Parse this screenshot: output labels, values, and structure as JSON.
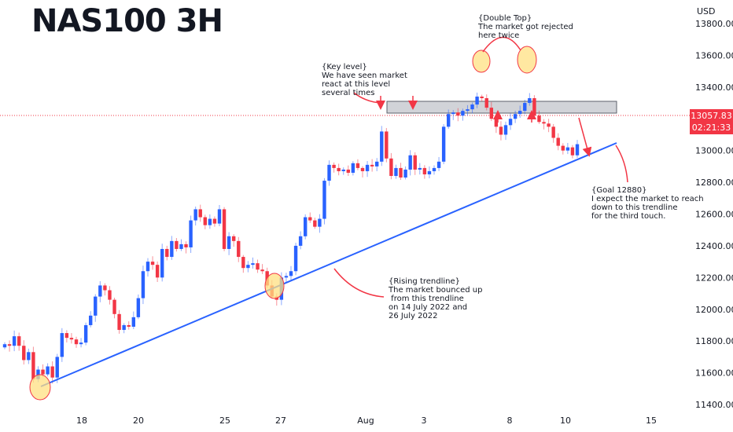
{
  "header": {
    "title": "NAS100 3H",
    "currency": "USD"
  },
  "price_tag": {
    "price": "13057.83",
    "countdown": "02:21:33"
  },
  "notes": {
    "double_top": "{Double Top}\nThe market got rejected\nhere twice",
    "key_level": "{Key level}\nWe have seen market\nreact at this level\nseveral times",
    "goal": "{Goal 12880}\nI expect the market to reach\ndown to this trendline\nfor the third touch.",
    "rising_trendline": "{Rising trendline}\nThe market bounced up\n from this trendline\non 14 July 2022 and\n26 July 2022"
  },
  "colors": {
    "up": "#2962ff",
    "down": "#f23645",
    "trendline": "#2962ff",
    "zone": "#b2b5be",
    "circle": "#ffe082"
  },
  "chart_data": {
    "type": "candlestick",
    "title": "NAS100 3H",
    "ylabel": "USD",
    "ylim": [
      11400,
      13800
    ],
    "y_ticks": [
      11400,
      11600,
      11800,
      12000,
      12200,
      12400,
      12600,
      12800,
      13000,
      13200,
      13400,
      13600,
      13800
    ],
    "x_ticks": [
      "18",
      "20",
      "25",
      "27",
      "Aug",
      "3",
      "8",
      "10",
      "15"
    ],
    "last_price": 13057.83,
    "key_level": [
      13080,
      13150
    ],
    "trendline": {
      "from": [
        "14 July 2022",
        11530
      ],
      "to": [
        "10 Aug 2022",
        12900
      ]
    },
    "series": [
      {
        "name": "",
        "close": [
          11780,
          11770,
          11830,
          11770,
          11680,
          11730,
          11560,
          11620,
          11590,
          11640,
          11570,
          11700,
          11850,
          11820,
          11810,
          11780,
          11790,
          11900,
          11960,
          12080,
          12150,
          12120,
          12060,
          11970,
          11870,
          11900,
          11890,
          11950,
          12070,
          12240,
          12300,
          12280,
          12200,
          12380,
          12330,
          12430,
          12380,
          12410,
          12390,
          12560,
          12630,
          12580,
          12530,
          12570,
          12540,
          12630,
          12380,
          12460,
          12430,
          12330,
          12260,
          12280,
          12290,
          12250,
          12240,
          12150,
          12080,
          12060,
          12200,
          12210,
          12240,
          12400,
          12460,
          12580,
          12560,
          12520,
          12570,
          12810,
          12910,
          12890,
          12870,
          12880,
          12860,
          12920,
          12890,
          12870,
          12910,
          12900,
          12930,
          13120,
          12950,
          12840,
          12890,
          12830,
          12880,
          12970,
          12880,
          12890,
          12850,
          12870,
          12890,
          12930,
          13150,
          13230,
          13240,
          13220,
          13250,
          13260,
          13290,
          13340,
          13330,
          13270,
          13200,
          13150,
          13100,
          13160,
          13200,
          13230,
          13250,
          13300,
          13330,
          13220,
          13180,
          13170,
          13150,
          13080,
          13030,
          13000,
          13020,
          12970,
          13040
        ]
      }
    ]
  }
}
